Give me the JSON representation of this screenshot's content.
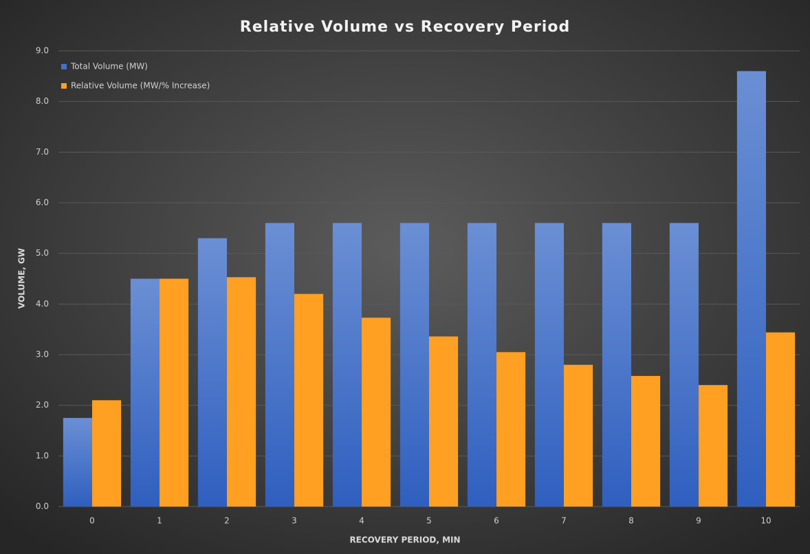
{
  "chart_data": {
    "type": "bar",
    "title": "Relative Volume vs Recovery Period",
    "x_label": "RECOVERY PERIOD, MIN",
    "y_label": "VOLUME, GW",
    "categories": [
      "0",
      "1",
      "2",
      "3",
      "4",
      "5",
      "6",
      "7",
      "8",
      "9",
      "10"
    ],
    "series": [
      {
        "name": "Total Volume (MW)",
        "color": "#4472c4",
        "values": [
          1.75,
          4.5,
          5.3,
          5.6,
          5.6,
          5.6,
          5.6,
          5.6,
          5.6,
          5.6,
          8.6
        ]
      },
      {
        "name": "Relative Volume (MW/% Increase)",
        "color": "#ffa023",
        "values": [
          2.1,
          4.5,
          4.53,
          4.2,
          3.73,
          3.36,
          3.05,
          2.8,
          2.58,
          2.4,
          3.44
        ]
      }
    ],
    "ylim": [
      0,
      9
    ],
    "yticks": [
      {
        "value": 0,
        "label": "0.0"
      },
      {
        "value": 1,
        "label": "1.0"
      },
      {
        "value": 2,
        "label": "2.0"
      },
      {
        "value": 3,
        "label": "3.0"
      },
      {
        "value": 4,
        "label": "4.0"
      },
      {
        "value": 5,
        "label": "5.0"
      },
      {
        "value": 6,
        "label": "6.0"
      },
      {
        "value": 7,
        "label": "7.0"
      },
      {
        "value": 8,
        "label": "8.0"
      },
      {
        "value": 9,
        "label": "9.0"
      }
    ],
    "grid": true,
    "legend": "top-left"
  }
}
